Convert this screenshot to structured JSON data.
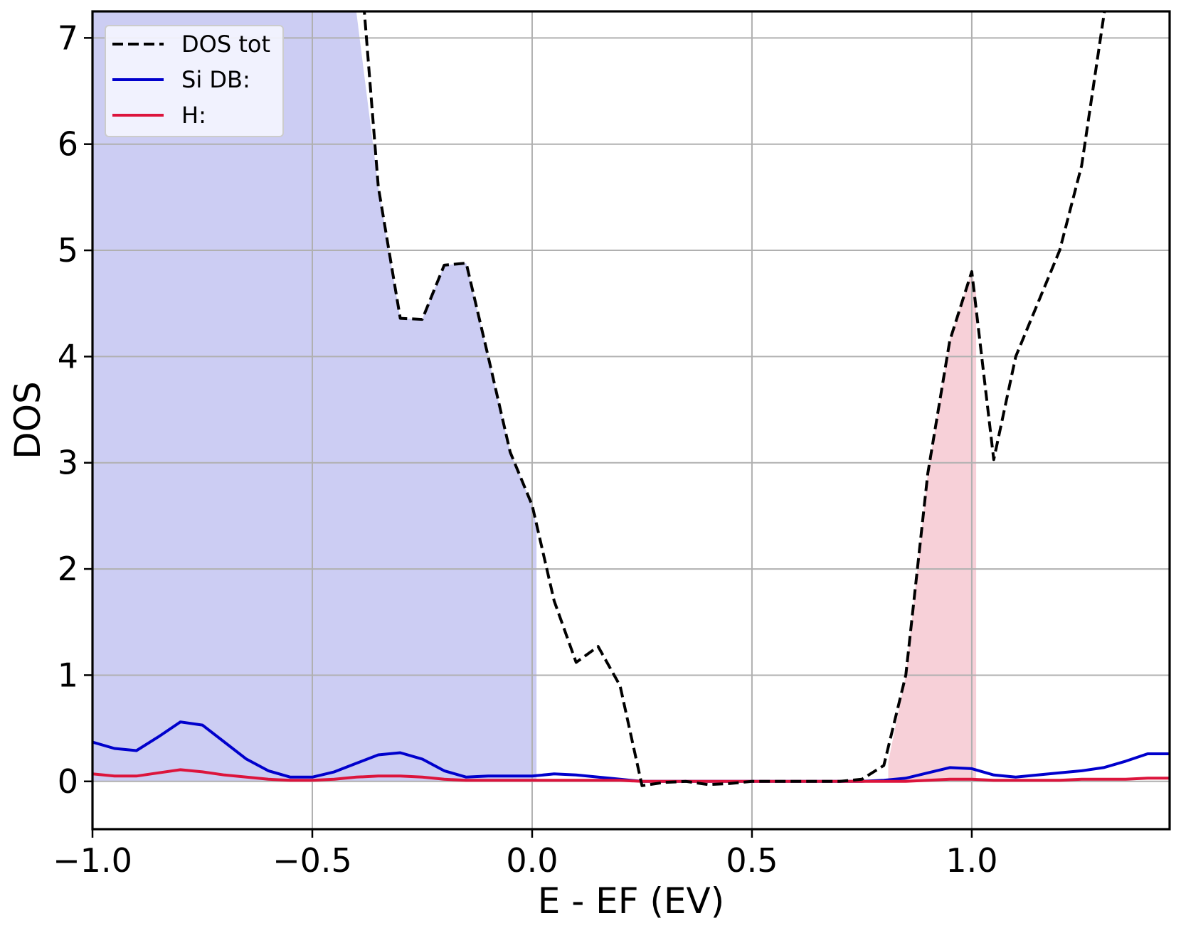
{
  "chart_data": {
    "type": "line",
    "title": "",
    "xlabel": "E - EF (EV)",
    "ylabel": "DOS",
    "xlim": [
      -1.0,
      1.45
    ],
    "ylim": [
      -0.45,
      7.25
    ],
    "grid": true,
    "legend_position": "top-left",
    "x_ticks": [
      {
        "value": -1.0,
        "label": "−1.0"
      },
      {
        "value": -0.5,
        "label": "−0.5"
      },
      {
        "value": 0.0,
        "label": "0.0"
      },
      {
        "value": 0.5,
        "label": "0.5"
      },
      {
        "value": 1.0,
        "label": "1.0"
      }
    ],
    "y_ticks": [
      {
        "value": 0,
        "label": "0"
      },
      {
        "value": 1,
        "label": "1"
      },
      {
        "value": 2,
        "label": "2"
      },
      {
        "value": 3,
        "label": "3"
      },
      {
        "value": 4,
        "label": "4"
      },
      {
        "value": 5,
        "label": "5"
      },
      {
        "value": 6,
        "label": "6"
      },
      {
        "value": 7,
        "label": "7"
      }
    ],
    "series": [
      {
        "name": "DOS tot",
        "color": "#000000",
        "style": "dashed",
        "x": [
          -0.4,
          -0.35,
          -0.3,
          -0.25,
          -0.2,
          -0.15,
          -0.1,
          -0.05,
          0.0,
          0.05,
          0.1,
          0.15,
          0.2,
          0.25,
          0.3,
          0.35,
          0.4,
          0.45,
          0.5,
          0.55,
          0.6,
          0.65,
          0.7,
          0.75,
          0.8,
          0.85,
          0.9,
          0.95,
          1.0,
          1.05,
          1.1,
          1.15,
          1.2,
          1.25,
          1.3,
          1.35
        ],
        "y": [
          8.2,
          5.6,
          4.36,
          4.35,
          4.86,
          4.88,
          4.0,
          3.1,
          2.6,
          1.7,
          1.12,
          1.27,
          0.9,
          -0.04,
          -0.01,
          0.0,
          -0.03,
          -0.02,
          0.0,
          0.0,
          0.0,
          0.0,
          0.0,
          0.02,
          0.15,
          1.0,
          2.9,
          4.15,
          4.8,
          3.03,
          4.0,
          4.5,
          5.0,
          5.8,
          7.2,
          8.5
        ]
      },
      {
        "name": "Si DB:",
        "color": "#0000cc",
        "style": "solid",
        "x": [
          -1.0,
          -0.95,
          -0.9,
          -0.85,
          -0.8,
          -0.75,
          -0.7,
          -0.65,
          -0.6,
          -0.55,
          -0.5,
          -0.45,
          -0.4,
          -0.35,
          -0.3,
          -0.25,
          -0.2,
          -0.15,
          -0.1,
          -0.05,
          0.0,
          0.05,
          0.1,
          0.15,
          0.2,
          0.25,
          0.3,
          0.35,
          0.4,
          0.45,
          0.5,
          0.55,
          0.6,
          0.65,
          0.7,
          0.75,
          0.8,
          0.85,
          0.9,
          0.95,
          1.0,
          1.05,
          1.1,
          1.15,
          1.2,
          1.25,
          1.3,
          1.35,
          1.4,
          1.45
        ],
        "y": [
          0.37,
          0.31,
          0.29,
          0.42,
          0.56,
          0.53,
          0.37,
          0.21,
          0.1,
          0.04,
          0.04,
          0.09,
          0.17,
          0.25,
          0.27,
          0.21,
          0.1,
          0.04,
          0.05,
          0.05,
          0.05,
          0.07,
          0.06,
          0.04,
          0.02,
          0.0,
          0.0,
          0.0,
          0.0,
          0.0,
          0.0,
          0.0,
          0.0,
          0.0,
          0.0,
          0.0,
          0.01,
          0.03,
          0.08,
          0.13,
          0.12,
          0.06,
          0.04,
          0.06,
          0.08,
          0.1,
          0.13,
          0.19,
          0.26,
          0.26
        ]
      },
      {
        "name": "H:",
        "color": "#dc143c",
        "style": "solid",
        "x": [
          -1.0,
          -0.95,
          -0.9,
          -0.85,
          -0.8,
          -0.75,
          -0.7,
          -0.65,
          -0.6,
          -0.55,
          -0.5,
          -0.45,
          -0.4,
          -0.35,
          -0.3,
          -0.25,
          -0.2,
          -0.15,
          -0.1,
          -0.05,
          0.0,
          0.05,
          0.1,
          0.15,
          0.2,
          0.25,
          0.3,
          0.35,
          0.4,
          0.45,
          0.5,
          0.55,
          0.6,
          0.65,
          0.7,
          0.75,
          0.8,
          0.85,
          0.9,
          0.95,
          1.0,
          1.05,
          1.1,
          1.15,
          1.2,
          1.25,
          1.3,
          1.35,
          1.4,
          1.45
        ],
        "y": [
          0.07,
          0.05,
          0.05,
          0.08,
          0.11,
          0.09,
          0.06,
          0.04,
          0.02,
          0.01,
          0.01,
          0.02,
          0.04,
          0.05,
          0.05,
          0.04,
          0.02,
          0.01,
          0.01,
          0.01,
          0.01,
          0.01,
          0.01,
          0.01,
          0.01,
          0.0,
          0.0,
          0.0,
          0.0,
          0.0,
          0.0,
          0.0,
          0.0,
          0.0,
          0.0,
          0.0,
          0.0,
          0.0,
          0.01,
          0.02,
          0.02,
          0.01,
          0.01,
          0.01,
          0.01,
          0.02,
          0.02,
          0.02,
          0.03,
          0.03
        ]
      }
    ],
    "fill_regions": [
      {
        "color": "#cccdf3",
        "x": [
          -1.0,
          -0.4,
          -0.35,
          -0.3,
          -0.25,
          -0.2,
          -0.15,
          -0.1,
          -0.05,
          0.0,
          0.01
        ],
        "y": [
          7.25,
          7.25,
          5.6,
          4.36,
          4.35,
          4.86,
          4.88,
          4.0,
          3.1,
          2.6,
          2.4
        ]
      },
      {
        "color": "#f7d0d8",
        "x": [
          0.81,
          0.85,
          0.9,
          0.95,
          1.0,
          1.01
        ],
        "y": [
          0.18,
          1.0,
          2.9,
          4.15,
          4.8,
          4.6
        ]
      }
    ]
  }
}
